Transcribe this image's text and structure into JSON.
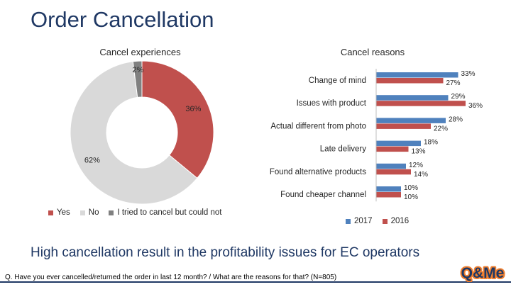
{
  "slide": {
    "title": "Order Cancellation",
    "headline": "High cancellation result in the profitability issues for EC operators",
    "footnote": "Q. Have you ever cancelled/returned the order in last 12 month? / What are the reasons for that? (N=805)",
    "logo_text": "Q&Me"
  },
  "colors": {
    "title": "#1f3864",
    "yes": "#c0504d",
    "no": "#d9d9d9",
    "could_not": "#808080",
    "y2017": "#4f81bd",
    "y2016": "#c0504d"
  },
  "chart_data": [
    {
      "type": "pie",
      "variant": "donut",
      "title": "Cancel experiences",
      "categories": [
        "Yes",
        "No",
        "I tried to cancel but could not"
      ],
      "values": [
        36,
        62,
        2
      ],
      "labels": [
        "36%",
        "62%",
        "2%"
      ],
      "legend": "bottom"
    },
    {
      "type": "bar",
      "orientation": "horizontal",
      "title": "Cancel reasons",
      "categories": [
        "Change of mind",
        "Issues with product",
        "Actual different from photo",
        "Late delivery",
        "Found alternative products",
        "Found cheaper channel"
      ],
      "series": [
        {
          "name": "2017",
          "values": [
            33,
            29,
            28,
            18,
            12,
            10
          ]
        },
        {
          "name": "2016",
          "values": [
            27,
            36,
            22,
            13,
            14,
            10
          ]
        }
      ],
      "xlim": [
        0,
        40
      ],
      "grid": false,
      "legend": "bottom"
    }
  ]
}
